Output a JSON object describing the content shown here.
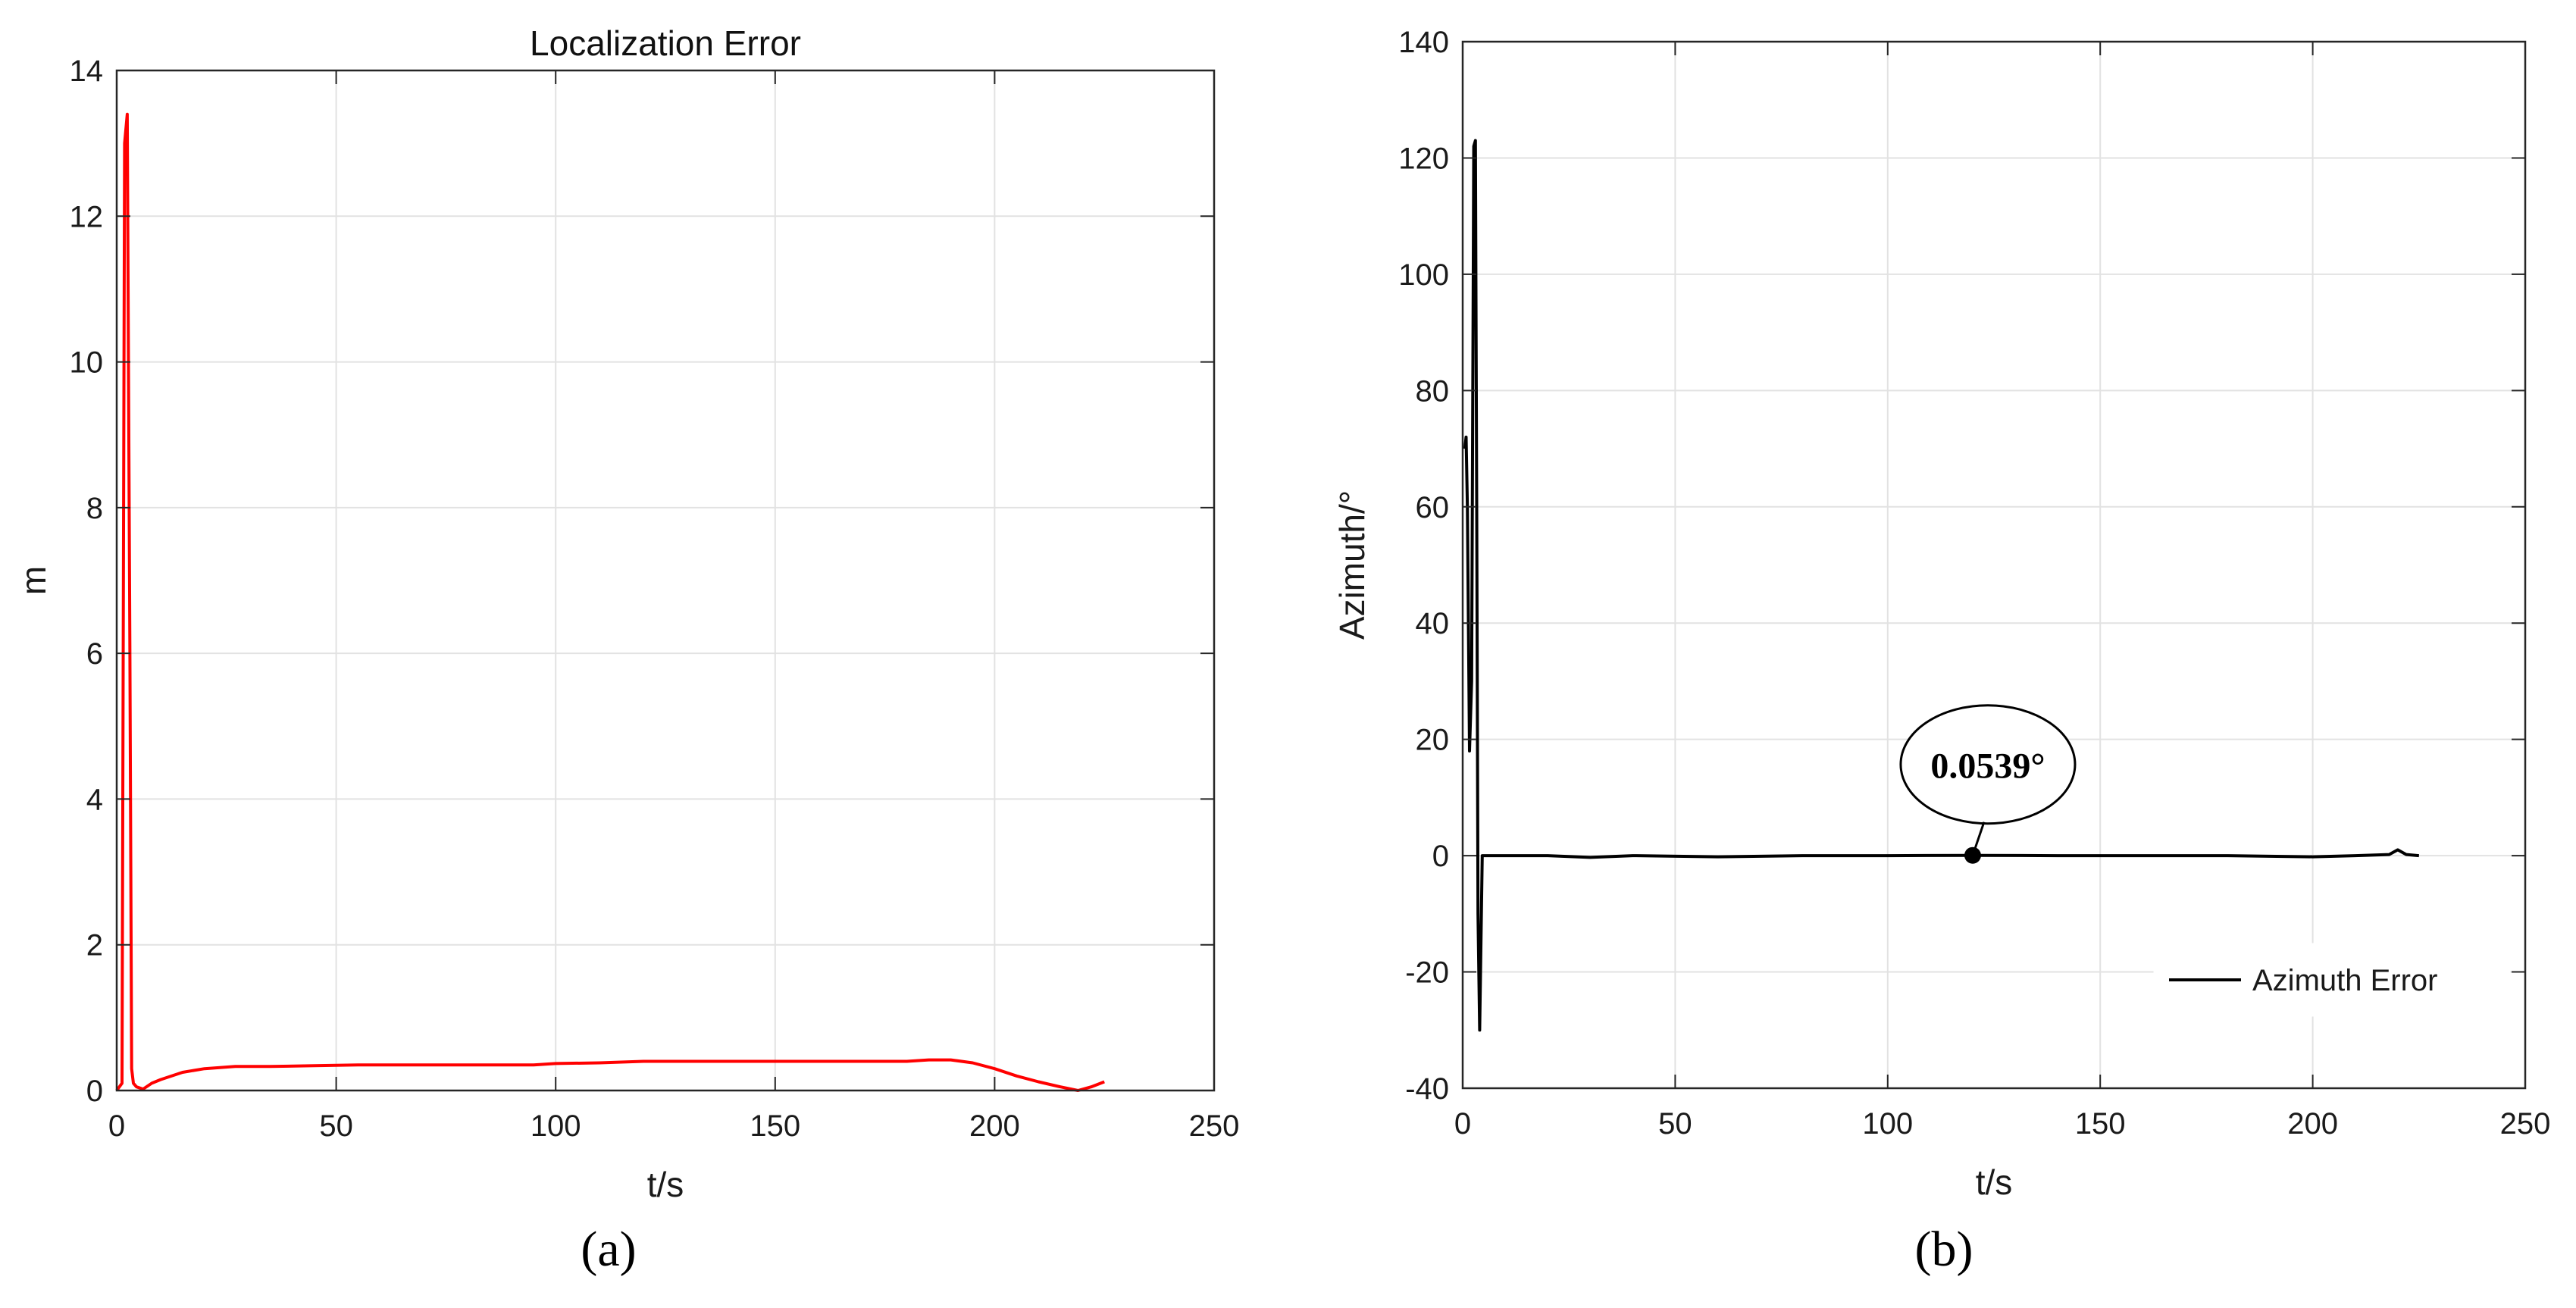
{
  "panels": [
    {
      "panel_label": "(a)",
      "chart_data": {
        "type": "line",
        "title": "Localization Error",
        "xlabel": "t/s",
        "ylabel": "m",
        "xlim": [
          0,
          250
        ],
        "ylim": [
          0,
          14
        ],
        "xticks": [
          0,
          50,
          100,
          150,
          200,
          250
        ],
        "yticks": [
          0,
          2,
          4,
          6,
          8,
          10,
          12,
          14
        ],
        "grid": true,
        "legend": null,
        "series": [
          {
            "color": "#ff0000",
            "x": [
              0,
              0.6,
              1.2,
              1.8,
              2.4,
              3.0,
              3.4,
              3.8,
              4.5,
              6,
              8,
              10,
              15,
              20,
              27,
              35,
              45,
              55,
              70,
              85,
              95,
              100,
              110,
              120,
              130,
              150,
              170,
              180,
              185,
              190,
              195,
              200,
              205,
              210,
              215,
              219,
              222,
              225
            ],
            "y": [
              0,
              0.05,
              0.1,
              13.0,
              13.4,
              6.0,
              0.3,
              0.1,
              0.05,
              0.02,
              0.1,
              0.15,
              0.25,
              0.3,
              0.33,
              0.33,
              0.34,
              0.35,
              0.35,
              0.35,
              0.35,
              0.37,
              0.38,
              0.4,
              0.4,
              0.4,
              0.4,
              0.4,
              0.42,
              0.42,
              0.38,
              0.3,
              0.2,
              0.12,
              0.05,
              0.0,
              0.05,
              0.12
            ]
          }
        ]
      }
    },
    {
      "panel_label": "(b)",
      "annotation": {
        "text": "0.0539°",
        "x": 120,
        "y": 0.0539
      },
      "chart_data": {
        "type": "line",
        "title": "",
        "xlabel": "t/s",
        "ylabel": "Azimuth/°",
        "xlim": [
          0,
          250
        ],
        "ylim": [
          -40,
          140
        ],
        "xticks": [
          0,
          50,
          100,
          150,
          200,
          250
        ],
        "yticks": [
          -40,
          -20,
          0,
          20,
          40,
          60,
          80,
          100,
          120,
          140
        ],
        "grid": true,
        "legend": "bottom-right",
        "series": [
          {
            "name": "Azimuth Error",
            "color": "#000000",
            "x": [
              0.5,
              0.8,
              1.1,
              1.6,
              2.1,
              2.6,
              3.0,
              3.3,
              3.6,
              4.0,
              4.6,
              6,
              10,
              20,
              30,
              40,
              60,
              80,
              100,
              120,
              140,
              160,
              180,
              200,
              210,
              218,
              220,
              222,
              225
            ],
            "y": [
              70,
              72,
              60,
              18,
              30,
              122,
              123,
              60,
              -10,
              -30,
              0,
              0,
              0,
              0,
              -0.3,
              0,
              -0.2,
              0,
              0,
              0.05,
              0,
              0,
              0,
              -0.2,
              0,
              0.2,
              1.0,
              0.2,
              0
            ]
          }
        ]
      }
    }
  ]
}
